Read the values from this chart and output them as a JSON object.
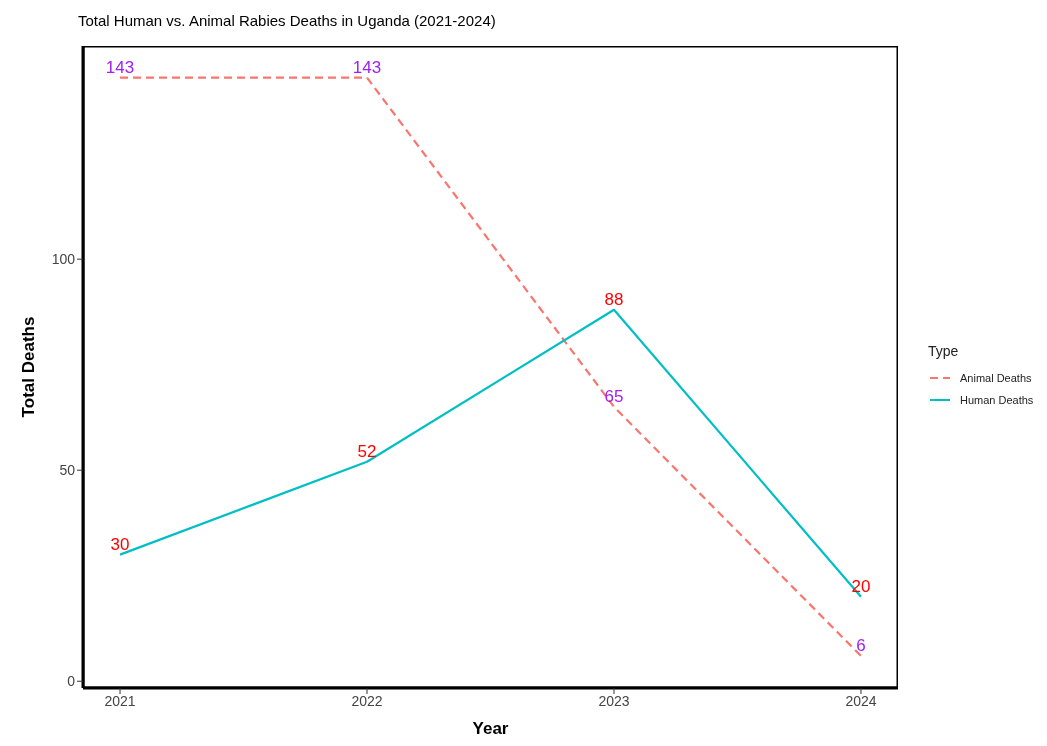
{
  "chart_data": {
    "type": "line",
    "title": "Total Human vs. Animal Rabies Deaths in Uganda (2021-2024)",
    "xlabel": "Year",
    "ylabel": "Total Deaths",
    "legend_title": "Type",
    "categories": [
      "2021",
      "2022",
      "2023",
      "2024"
    ],
    "series": [
      {
        "name": "Animal Deaths",
        "color": "#f8766d",
        "line_style": "dashed",
        "values": [
          143,
          143,
          65,
          6
        ]
      },
      {
        "name": "Human Deaths",
        "color": "#00bfc4",
        "line_style": "solid",
        "values": [
          30,
          52,
          88,
          20
        ]
      }
    ],
    "ylim": [
      -1.6,
      150.5
    ],
    "yticks": [
      0,
      50,
      100
    ],
    "legend": "right",
    "data_labels": true,
    "marker": "none"
  }
}
